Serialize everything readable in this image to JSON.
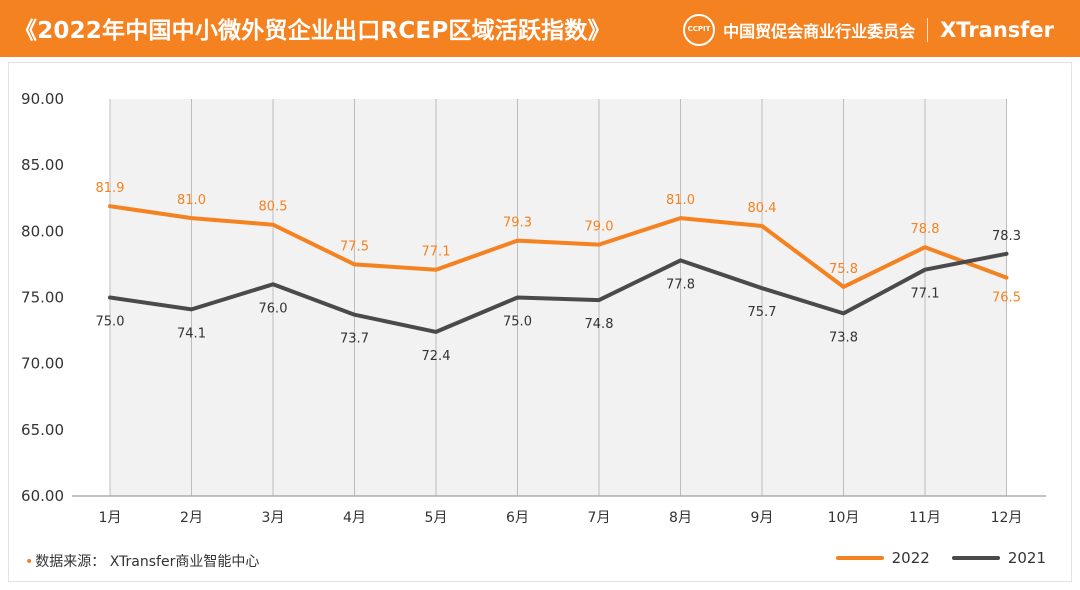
{
  "header": {
    "title": "《2022年中国中小微外贸企业出口RCEP区域活跃指数》",
    "logo_text": "CCPIT",
    "org_name": "中国贸促会商业行业委员会",
    "brand": "XTransfer"
  },
  "footer": {
    "source": "数据来源：  XTransfer商业智能中心"
  },
  "colors": {
    "series_2022": "#F58220",
    "series_2021": "#4A4A4A",
    "plot_bg": "#F2F2F2"
  },
  "chart_data": {
    "type": "line",
    "categories": [
      "1月",
      "2月",
      "3月",
      "4月",
      "5月",
      "6月",
      "7月",
      "8月",
      "9月",
      "10月",
      "11月",
      "12月"
    ],
    "series": [
      {
        "name": "2022",
        "values": [
          81.9,
          81.0,
          80.5,
          77.5,
          77.1,
          79.3,
          79.0,
          81.0,
          80.4,
          75.8,
          78.8,
          76.5
        ]
      },
      {
        "name": "2021",
        "values": [
          75.0,
          74.1,
          76.0,
          73.7,
          72.4,
          75.0,
          74.8,
          77.8,
          75.7,
          73.8,
          77.1,
          78.3
        ]
      }
    ],
    "ylim": [
      60,
      90
    ],
    "yticks": [
      "60.00",
      "65.00",
      "70.00",
      "75.00",
      "80.00",
      "85.00",
      "90.00"
    ],
    "legend_position": "bottom-right",
    "grid": "vertical"
  }
}
